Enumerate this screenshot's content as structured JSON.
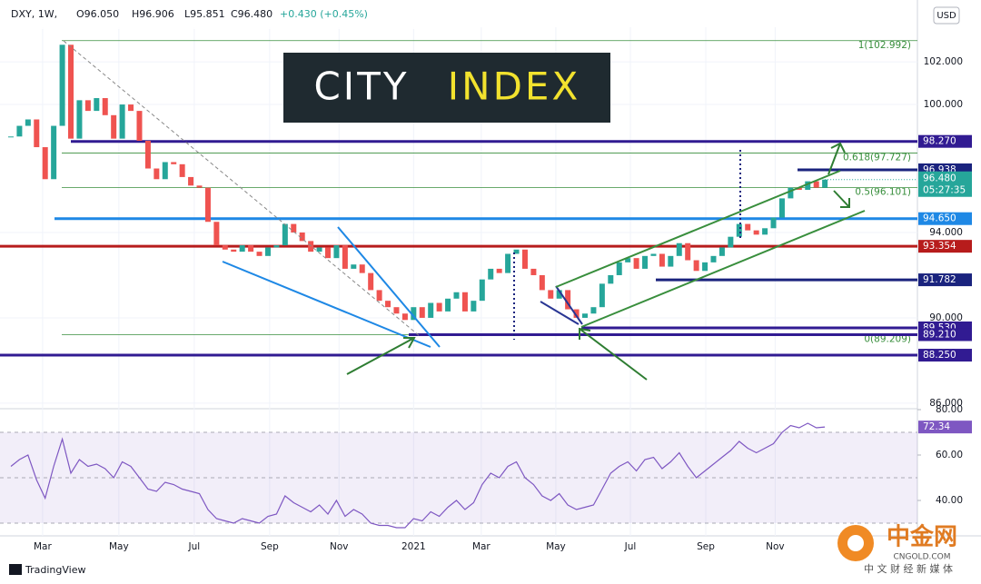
{
  "header": {
    "symbol": "DXY, 1W,",
    "ohlc": [
      "O96.050",
      "H96.906",
      "L95.851",
      "C96.480",
      "+0.430 (+0.45%)"
    ],
    "currency": "USD"
  },
  "logo": {
    "left": "CITY",
    "right": "INDEX"
  },
  "footer": {
    "brand": "TradingView",
    "watermark": "中金网",
    "watermark_url": "CNGOLD.COM",
    "watermark_tagline": "中 文 财 经 新 媒 体"
  },
  "chart_data": [
    {
      "type": "candlestick",
      "title": "DXY, 1W",
      "values": [
        98.5,
        99.0,
        99.3,
        98.0,
        96.5,
        99.0,
        102.8,
        98.4,
        100.2,
        99.7,
        100.3,
        99.5,
        98.4,
        100.0,
        99.7,
        98.3,
        97.0,
        96.5,
        97.3,
        97.2,
        96.6,
        96.2,
        96.1,
        94.5,
        93.4,
        93.2,
        93.1,
        93.4,
        93.1,
        92.9,
        93.3,
        93.4,
        94.4,
        94.0,
        93.6,
        93.1,
        93.3,
        92.8,
        93.4,
        92.3,
        92.5,
        92.1,
        91.3,
        90.8,
        90.5,
        90.2,
        89.9,
        90.5,
        90.0,
        90.7,
        90.3,
        90.9,
        91.2,
        90.3,
        90.8,
        91.8,
        92.3,
        92.1,
        93.0,
        93.2,
        92.3,
        92.0,
        91.3,
        90.9,
        91.3,
        90.4,
        90.0,
        90.2,
        90.5,
        91.6,
        92.0,
        92.6,
        92.8,
        92.3,
        92.9,
        93.0,
        92.4,
        92.9,
        93.5,
        92.7,
        92.2,
        92.6,
        92.9,
        93.3,
        93.8,
        94.4,
        94.1,
        93.9,
        94.2,
        94.7,
        95.6,
        96.1,
        96.0,
        96.4,
        96.1,
        96.48
      ],
      "colors": {
        "up": "#26a69a",
        "down": "#ef5350"
      },
      "xlim": [
        -1.27,
        105.8
      ],
      "xticks": [
        {
          "value": 3.7,
          "label": "Mar"
        },
        {
          "value": 12.6,
          "label": "May"
        },
        {
          "value": 21.4,
          "label": "Jul"
        },
        {
          "value": 30.2,
          "label": "Sep"
        },
        {
          "value": 38.3,
          "label": "Nov"
        },
        {
          "value": 47.0,
          "label": "2021"
        },
        {
          "value": 54.9,
          "label": "Mar"
        },
        {
          "value": 63.6,
          "label": "May"
        },
        {
          "value": 72.3,
          "label": "Jul"
        },
        {
          "value": 81.1,
          "label": "Sep"
        },
        {
          "value": 89.2,
          "label": "Nov"
        }
      ],
      "ylim": [
        85.74,
        104.26
      ],
      "yticks": [
        {
          "value": 86,
          "label": "86.000"
        },
        {
          "value": 90,
          "label": "90.000"
        },
        {
          "value": 94,
          "label": "94.000"
        },
        {
          "value": 100,
          "label": "100.000"
        },
        {
          "value": 102,
          "label": "102.000"
        }
      ],
      "grid": true,
      "levels": [
        {
          "value": 98.27,
          "label": "98.270",
          "color": "#311b92"
        },
        {
          "value": 96.938,
          "label": "96.938",
          "color": "#1a237e"
        },
        {
          "value": 94.65,
          "label": "94.650",
          "color": "#1e88e5"
        },
        {
          "value": 93.354,
          "label": "93.354",
          "color": "#b71c1c"
        },
        {
          "value": 91.782,
          "label": "91.782",
          "color": "#1a237e"
        },
        {
          "value": 89.53,
          "label": "89.530",
          "color": "#311b92"
        },
        {
          "value": 89.21,
          "label": "89.210",
          "color": "#311b92"
        },
        {
          "value": 88.25,
          "label": "88.250",
          "color": "#311b92"
        }
      ],
      "fib": [
        {
          "value": 102.992,
          "label": "1(102.992)"
        },
        {
          "value": 97.727,
          "label": "0.618(97.727)"
        },
        {
          "value": 96.101,
          "label": "0.5(96.101)"
        },
        {
          "value": 89.209,
          "label": "0(89.209)"
        }
      ],
      "fib_color": "#388e3c",
      "price_label": {
        "value": 96.48,
        "label": "96.480",
        "countdown": "05:27:35",
        "color": "#26a69a"
      }
    },
    {
      "type": "line",
      "values": [
        55,
        58,
        60,
        49,
        41,
        55,
        67,
        52,
        58,
        55,
        56,
        54,
        50,
        57,
        55,
        50,
        45,
        44,
        48,
        47,
        45,
        44,
        43,
        36,
        32,
        31,
        30,
        32,
        31,
        30,
        33,
        34,
        42,
        39,
        37,
        35,
        38,
        34,
        40,
        33,
        36,
        34,
        30,
        29,
        29,
        28,
        28,
        32,
        31,
        35,
        33,
        37,
        40,
        36,
        39,
        47,
        52,
        50,
        55,
        57,
        50,
        47,
        42,
        40,
        43,
        38,
        36,
        37,
        38,
        45,
        52,
        55,
        57,
        53,
        58,
        59,
        54,
        57,
        61,
        55,
        50,
        53,
        56,
        59,
        62,
        66,
        63,
        61,
        63,
        65,
        70,
        73,
        72,
        74,
        72,
        72.34
      ],
      "value_labels": {
        "95": "72.34"
      },
      "color": "#7e57c2",
      "ylim": [
        29.2,
        80.4
      ],
      "yticks": [
        {
          "value": 40,
          "label": "40.00"
        },
        {
          "value": 60,
          "label": "60.00"
        },
        {
          "value": 80,
          "label": "80.00"
        }
      ],
      "band": [
        30,
        70
      ],
      "midline": 50
    }
  ]
}
